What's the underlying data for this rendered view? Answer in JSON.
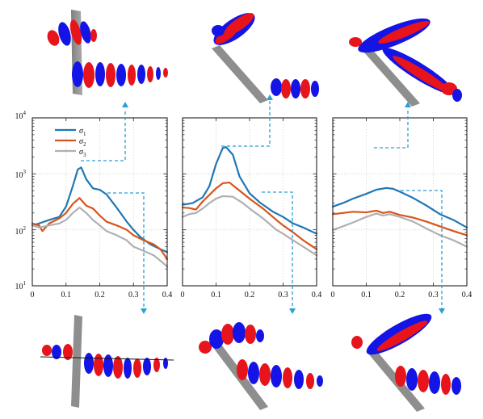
{
  "colors": {
    "sigma1": "#1f77b4",
    "sigma2": "#d9541a",
    "sigma3": "#b0b0b0",
    "connector": "#2a9fd6",
    "mode_red": "#e8141c",
    "mode_blue": "#1414e6",
    "plate": "#8e8e8e"
  },
  "legend": {
    "entries": [
      {
        "base": "σ",
        "sub": "1"
      },
      {
        "base": "σ",
        "sub": "2"
      },
      {
        "base": "σ",
        "sub": "3"
      }
    ],
    "placement": "top-left"
  },
  "chart_data": [
    {
      "type": "line",
      "yscale": "log",
      "xlim": [
        0,
        0.4
      ],
      "ylim": [
        10,
        10000
      ],
      "xticks": [
        "0",
        "0.1",
        "0.2",
        "0.3",
        "0.4"
      ],
      "yticks": [
        {
          "base": "10",
          "exp": "1"
        },
        {
          "base": "10",
          "exp": "2"
        },
        {
          "base": "10",
          "exp": "3"
        },
        {
          "base": "10",
          "exp": "4"
        }
      ],
      "grid": true,
      "legend": true,
      "series": [
        {
          "name": "σ1",
          "x": [
            0,
            0.02,
            0.05,
            0.08,
            0.1,
            0.12,
            0.135,
            0.145,
            0.16,
            0.18,
            0.2,
            0.22,
            0.25,
            0.28,
            0.3,
            0.32,
            0.35,
            0.38,
            0.4
          ],
          "y": [
            120,
            130,
            150,
            170,
            260,
            600,
            1200,
            1300,
            800,
            550,
            520,
            430,
            250,
            140,
            100,
            75,
            55,
            45,
            40
          ]
        },
        {
          "name": "σ2",
          "x": [
            0,
            0.02,
            0.03,
            0.05,
            0.08,
            0.1,
            0.12,
            0.14,
            0.16,
            0.18,
            0.2,
            0.22,
            0.25,
            0.28,
            0.3,
            0.33,
            0.36,
            0.38,
            0.4
          ],
          "y": [
            130,
            120,
            95,
            130,
            160,
            200,
            290,
            370,
            270,
            240,
            180,
            140,
            120,
            100,
            80,
            65,
            55,
            45,
            30
          ]
        },
        {
          "name": "σ3",
          "x": [
            0,
            0.02,
            0.05,
            0.08,
            0.1,
            0.12,
            0.14,
            0.16,
            0.18,
            0.2,
            0.22,
            0.25,
            0.28,
            0.3,
            0.33,
            0.36,
            0.38,
            0.4
          ],
          "y": [
            120,
            110,
            120,
            130,
            150,
            200,
            250,
            200,
            150,
            120,
            95,
            80,
            65,
            50,
            42,
            35,
            28,
            22
          ]
        }
      ]
    },
    {
      "type": "line",
      "yscale": "log",
      "xlim": [
        0,
        0.4
      ],
      "ylim": [
        10,
        10000
      ],
      "xticks": [
        "0",
        "0.1",
        "0.2",
        "0.3",
        "0.4"
      ],
      "grid": true,
      "series": [
        {
          "name": "σ1",
          "x": [
            0,
            0.03,
            0.06,
            0.08,
            0.1,
            0.12,
            0.13,
            0.15,
            0.17,
            0.2,
            0.23,
            0.27,
            0.3,
            0.33,
            0.36,
            0.4
          ],
          "y": [
            280,
            300,
            380,
            600,
            1500,
            2900,
            3000,
            2200,
            900,
            450,
            310,
            210,
            170,
            130,
            110,
            85
          ]
        },
        {
          "name": "σ2",
          "x": [
            0,
            0.02,
            0.04,
            0.06,
            0.08,
            0.1,
            0.12,
            0.14,
            0.16,
            0.2,
            0.24,
            0.28,
            0.3,
            0.33,
            0.36,
            0.4
          ],
          "y": [
            250,
            245,
            230,
            320,
            420,
            550,
            680,
            700,
            560,
            360,
            240,
            150,
            120,
            90,
            65,
            45
          ]
        },
        {
          "name": "σ3",
          "x": [
            0,
            0.02,
            0.04,
            0.06,
            0.08,
            0.1,
            0.12,
            0.15,
            0.18,
            0.2,
            0.24,
            0.28,
            0.3,
            0.33,
            0.36,
            0.4
          ],
          "y": [
            170,
            190,
            200,
            240,
            300,
            360,
            400,
            390,
            300,
            240,
            160,
            100,
            85,
            65,
            50,
            35
          ]
        }
      ]
    },
    {
      "type": "line",
      "yscale": "log",
      "xlim": [
        0,
        0.4
      ],
      "ylim": [
        10,
        10000
      ],
      "xticks": [
        "0",
        "0.1",
        "0.2",
        "0.3",
        "0.4"
      ],
      "grid": true,
      "series": [
        {
          "name": "σ1",
          "x": [
            0,
            0.03,
            0.06,
            0.1,
            0.13,
            0.16,
            0.18,
            0.2,
            0.24,
            0.28,
            0.32,
            0.36,
            0.4
          ],
          "y": [
            260,
            300,
            360,
            440,
            520,
            560,
            540,
            480,
            370,
            270,
            190,
            150,
            110
          ]
        },
        {
          "name": "σ2",
          "x": [
            0,
            0.03,
            0.06,
            0.1,
            0.13,
            0.15,
            0.17,
            0.2,
            0.24,
            0.28,
            0.32,
            0.36,
            0.4
          ],
          "y": [
            190,
            200,
            210,
            205,
            220,
            200,
            210,
            185,
            165,
            140,
            115,
            95,
            80
          ]
        },
        {
          "name": "σ3",
          "x": [
            0,
            0.03,
            0.06,
            0.1,
            0.13,
            0.15,
            0.17,
            0.2,
            0.24,
            0.28,
            0.32,
            0.36,
            0.4
          ],
          "y": [
            100,
            115,
            135,
            170,
            195,
            180,
            190,
            170,
            140,
            105,
            80,
            65,
            50
          ]
        }
      ]
    }
  ]
}
